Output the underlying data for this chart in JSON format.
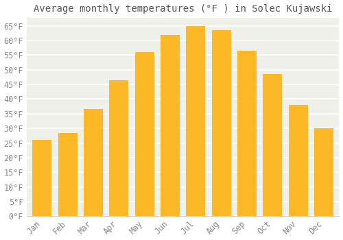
{
  "title": "Average monthly temperatures (°F ) in Solec Kujawski",
  "months": [
    "Jan",
    "Feb",
    "Mar",
    "Apr",
    "May",
    "Jun",
    "Jul",
    "Aug",
    "Sep",
    "Oct",
    "Nov",
    "Dec"
  ],
  "values": [
    26,
    28.5,
    36.5,
    46.5,
    56,
    62,
    65,
    63.5,
    56.5,
    48.5,
    38,
    30
  ],
  "bar_color_top": "#FDB827",
  "bar_color_bottom": "#F5A623",
  "background_color": "#f0f0eb",
  "plot_bg_color": "#f0f0eb",
  "grid_color": "#ffffff",
  "tick_label_color": "#888888",
  "title_color": "#555555",
  "title_bg_color": "#ffffff",
  "ylim": [
    0,
    68
  ],
  "yticks": [
    0,
    5,
    10,
    15,
    20,
    25,
    30,
    35,
    40,
    45,
    50,
    55,
    60,
    65
  ],
  "ytick_labels": [
    "0°F",
    "5°F",
    "10°F",
    "15°F",
    "20°F",
    "25°F",
    "30°F",
    "35°F",
    "40°F",
    "45°F",
    "50°F",
    "55°F",
    "60°F",
    "65°F"
  ],
  "title_fontsize": 10,
  "tick_fontsize": 8.5,
  "bar_width": 0.75
}
